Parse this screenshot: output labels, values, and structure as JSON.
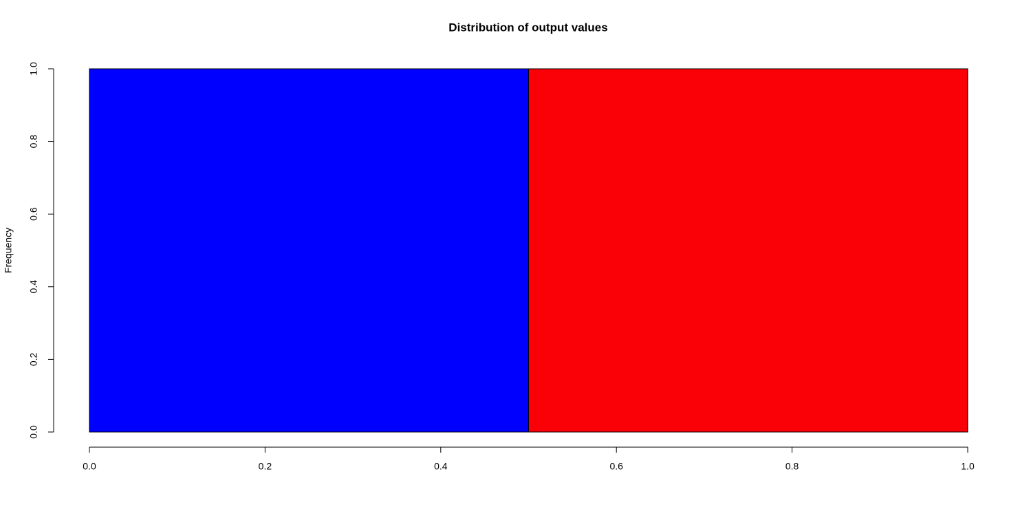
{
  "chart_data": {
    "type": "histogram",
    "title": "Distribution of output values",
    "y_label": "Frequency",
    "bins": [
      0,
      0.5,
      1
    ],
    "values": [
      1,
      1
    ],
    "colors": [
      "#0000ff",
      "#fa0007"
    ],
    "xlim": [
      0,
      1
    ],
    "ylim": [
      0,
      1
    ],
    "xticks": [
      {
        "value": 0,
        "label": "0.0"
      },
      0.2,
      0.4,
      0.6,
      0.8,
      {
        "value": 1,
        "label": "1.0"
      }
    ],
    "yticks": [
      {
        "value": 0,
        "label": "0.0"
      },
      0.2,
      0.4,
      0.6,
      0.8,
      {
        "value": 1,
        "label": "1.0"
      }
    ],
    "grid": false
  }
}
